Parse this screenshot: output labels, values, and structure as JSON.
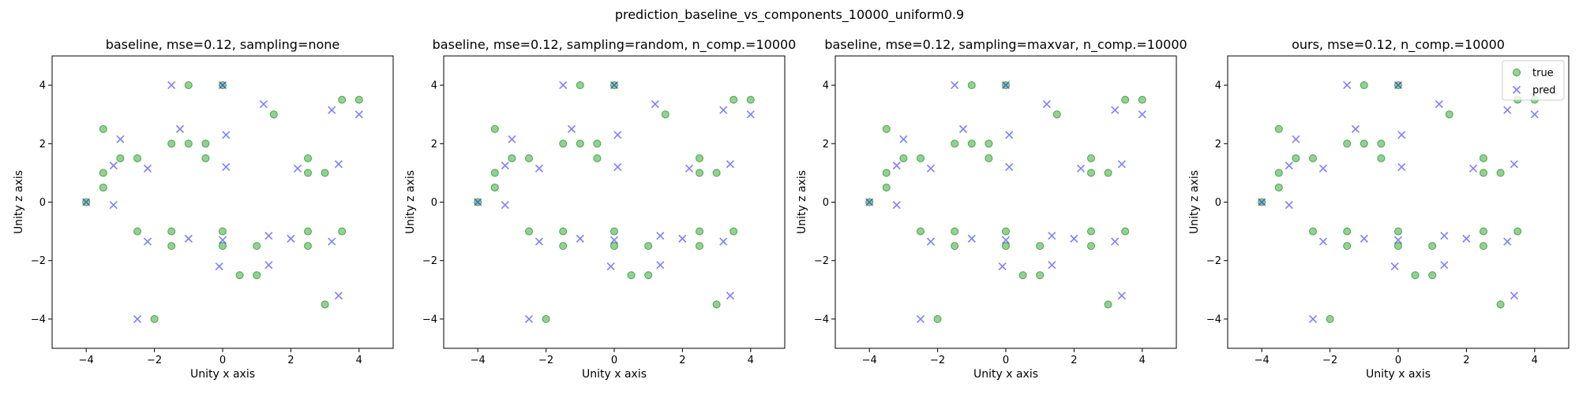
{
  "figure": {
    "suptitle": "prediction_baseline_vs_components_10000_uniform0.9"
  },
  "colors": {
    "true": "#2ca02c",
    "pred": "#0000ff"
  },
  "chart_data": [
    {
      "type": "scatter",
      "title": "baseline, mse=0.12, sampling=none",
      "xlabel": "Unity x axis",
      "ylabel": "Unity z axis",
      "xlim": [
        -5,
        5
      ],
      "ylim": [
        -5,
        5
      ],
      "xticks": [
        -4,
        -2,
        0,
        2,
        4
      ],
      "yticks": [
        -4,
        -2,
        0,
        2,
        4
      ],
      "grid": false,
      "series": [
        {
          "key": "true",
          "marker": "circle",
          "points": [
            [
              -4,
              0
            ],
            [
              -3.5,
              0.5
            ],
            [
              -3.5,
              1
            ],
            [
              -3.5,
              2.5
            ],
            [
              -3,
              1.5
            ],
            [
              -2.5,
              1.5
            ],
            [
              -1.5,
              2
            ],
            [
              -1,
              2
            ],
            [
              -0.5,
              2
            ],
            [
              -0.5,
              1.5
            ],
            [
              -1,
              4
            ],
            [
              0,
              4
            ],
            [
              1.5,
              3
            ],
            [
              2.5,
              1
            ],
            [
              2.5,
              1.5
            ],
            [
              3.5,
              3.5
            ],
            [
              4,
              3.5
            ],
            [
              3,
              1
            ],
            [
              -2.5,
              -1
            ],
            [
              -1.5,
              -1
            ],
            [
              -1.5,
              -1.5
            ],
            [
              0,
              -1
            ],
            [
              0,
              -1.5
            ],
            [
              0.5,
              -2.5
            ],
            [
              1,
              -2.5
            ],
            [
              1,
              -1.5
            ],
            [
              2.5,
              -1
            ],
            [
              2.5,
              -1.5
            ],
            [
              3.5,
              -1
            ],
            [
              3,
              -3.5
            ],
            [
              -2,
              -4
            ]
          ]
        },
        {
          "key": "pred",
          "marker": "x",
          "points": [
            [
              -4,
              0
            ],
            [
              -3.2,
              1.25
            ],
            [
              -3.2,
              -0.1
            ],
            [
              -3,
              2.15
            ],
            [
              -2.2,
              1.15
            ],
            [
              -2.2,
              -1.35
            ],
            [
              -1.5,
              4
            ],
            [
              -1.25,
              2.5
            ],
            [
              -1,
              -1.25
            ],
            [
              0,
              4
            ],
            [
              0.1,
              2.3
            ],
            [
              0.1,
              1.2
            ],
            [
              0,
              -1.3
            ],
            [
              -0.1,
              -2.2
            ],
            [
              1.2,
              3.35
            ],
            [
              1.35,
              -1.15
            ],
            [
              1.35,
              -2.15
            ],
            [
              2,
              -1.25
            ],
            [
              2.2,
              1.15
            ],
            [
              3.2,
              3.15
            ],
            [
              3.2,
              -1.35
            ],
            [
              3.4,
              1.3
            ],
            [
              3.4,
              -3.2
            ],
            [
              4,
              3
            ],
            [
              -2.5,
              -4
            ]
          ]
        }
      ]
    },
    {
      "type": "scatter",
      "title": "baseline, mse=0.12, sampling=random, n_comp.=10000",
      "xlabel": "Unity x axis",
      "ylabel": "Unity z axis",
      "xlim": [
        -5,
        5
      ],
      "ylim": [
        -5,
        5
      ],
      "xticks": [
        -4,
        -2,
        0,
        2,
        4
      ],
      "yticks": [
        -4,
        -2,
        0,
        2,
        4
      ],
      "grid": false,
      "series": [
        {
          "key": "true",
          "marker": "circle",
          "points": [
            [
              -4,
              0
            ],
            [
              -3.5,
              0.5
            ],
            [
              -3.5,
              1
            ],
            [
              -3.5,
              2.5
            ],
            [
              -3,
              1.5
            ],
            [
              -2.5,
              1.5
            ],
            [
              -1.5,
              2
            ],
            [
              -1,
              2
            ],
            [
              -0.5,
              2
            ],
            [
              -0.5,
              1.5
            ],
            [
              -1,
              4
            ],
            [
              0,
              4
            ],
            [
              1.5,
              3
            ],
            [
              2.5,
              1
            ],
            [
              2.5,
              1.5
            ],
            [
              3.5,
              3.5
            ],
            [
              4,
              3.5
            ],
            [
              3,
              1
            ],
            [
              -2.5,
              -1
            ],
            [
              -1.5,
              -1
            ],
            [
              -1.5,
              -1.5
            ],
            [
              0,
              -1
            ],
            [
              0,
              -1.5
            ],
            [
              0.5,
              -2.5
            ],
            [
              1,
              -2.5
            ],
            [
              1,
              -1.5
            ],
            [
              2.5,
              -1
            ],
            [
              2.5,
              -1.5
            ],
            [
              3.5,
              -1
            ],
            [
              3,
              -3.5
            ],
            [
              -2,
              -4
            ]
          ]
        },
        {
          "key": "pred",
          "marker": "x",
          "points": [
            [
              -4,
              0
            ],
            [
              -3.2,
              1.25
            ],
            [
              -3.2,
              -0.1
            ],
            [
              -3,
              2.15
            ],
            [
              -2.2,
              1.15
            ],
            [
              -2.2,
              -1.35
            ],
            [
              -1.5,
              4
            ],
            [
              -1.25,
              2.5
            ],
            [
              -1,
              -1.25
            ],
            [
              0,
              4
            ],
            [
              0.1,
              2.3
            ],
            [
              0.1,
              1.2
            ],
            [
              0,
              -1.3
            ],
            [
              -0.1,
              -2.2
            ],
            [
              1.2,
              3.35
            ],
            [
              1.35,
              -1.15
            ],
            [
              1.35,
              -2.15
            ],
            [
              2,
              -1.25
            ],
            [
              2.2,
              1.15
            ],
            [
              3.2,
              3.15
            ],
            [
              3.2,
              -1.35
            ],
            [
              3.4,
              1.3
            ],
            [
              3.4,
              -3.2
            ],
            [
              4,
              3
            ],
            [
              -2.5,
              -4
            ]
          ]
        }
      ]
    },
    {
      "type": "scatter",
      "title": "baseline, mse=0.12, sampling=maxvar, n_comp.=10000",
      "xlabel": "Unity x axis",
      "ylabel": "Unity z axis",
      "xlim": [
        -5,
        5
      ],
      "ylim": [
        -5,
        5
      ],
      "xticks": [
        -4,
        -2,
        0,
        2,
        4
      ],
      "yticks": [
        -4,
        -2,
        0,
        2,
        4
      ],
      "grid": false,
      "series": [
        {
          "key": "true",
          "marker": "circle",
          "points": [
            [
              -4,
              0
            ],
            [
              -3.5,
              0.5
            ],
            [
              -3.5,
              1
            ],
            [
              -3.5,
              2.5
            ],
            [
              -3,
              1.5
            ],
            [
              -2.5,
              1.5
            ],
            [
              -1.5,
              2
            ],
            [
              -1,
              2
            ],
            [
              -0.5,
              2
            ],
            [
              -0.5,
              1.5
            ],
            [
              -1,
              4
            ],
            [
              0,
              4
            ],
            [
              1.5,
              3
            ],
            [
              2.5,
              1
            ],
            [
              2.5,
              1.5
            ],
            [
              3.5,
              3.5
            ],
            [
              4,
              3.5
            ],
            [
              3,
              1
            ],
            [
              -2.5,
              -1
            ],
            [
              -1.5,
              -1
            ],
            [
              -1.5,
              -1.5
            ],
            [
              0,
              -1
            ],
            [
              0,
              -1.5
            ],
            [
              0.5,
              -2.5
            ],
            [
              1,
              -2.5
            ],
            [
              1,
              -1.5
            ],
            [
              2.5,
              -1
            ],
            [
              2.5,
              -1.5
            ],
            [
              3.5,
              -1
            ],
            [
              3,
              -3.5
            ],
            [
              -2,
              -4
            ]
          ]
        },
        {
          "key": "pred",
          "marker": "x",
          "points": [
            [
              -4,
              0
            ],
            [
              -3.2,
              1.25
            ],
            [
              -3.2,
              -0.1
            ],
            [
              -3,
              2.15
            ],
            [
              -2.2,
              1.15
            ],
            [
              -2.2,
              -1.35
            ],
            [
              -1.5,
              4
            ],
            [
              -1.25,
              2.5
            ],
            [
              -1,
              -1.25
            ],
            [
              0,
              4
            ],
            [
              0.1,
              2.3
            ],
            [
              0.1,
              1.2
            ],
            [
              0,
              -1.3
            ],
            [
              -0.1,
              -2.2
            ],
            [
              1.2,
              3.35
            ],
            [
              1.35,
              -1.15
            ],
            [
              1.35,
              -2.15
            ],
            [
              2,
              -1.25
            ],
            [
              2.2,
              1.15
            ],
            [
              3.2,
              3.15
            ],
            [
              3.2,
              -1.35
            ],
            [
              3.4,
              1.3
            ],
            [
              3.4,
              -3.2
            ],
            [
              4,
              3
            ],
            [
              -2.5,
              -4
            ]
          ]
        }
      ]
    },
    {
      "type": "scatter",
      "title": "ours, mse=0.12, n_comp.=10000",
      "xlabel": "Unity x axis",
      "ylabel": "Unity z axis",
      "xlim": [
        -5,
        5
      ],
      "ylim": [
        -5,
        5
      ],
      "xticks": [
        -4,
        -2,
        0,
        2,
        4
      ],
      "yticks": [
        -4,
        -2,
        0,
        2,
        4
      ],
      "grid": false,
      "legend": {
        "location": "top-right",
        "entries": [
          {
            "key": "true",
            "label": "true"
          },
          {
            "key": "pred",
            "label": "pred"
          }
        ]
      },
      "series": [
        {
          "key": "true",
          "name": "true",
          "marker": "circle",
          "points": [
            [
              -4,
              0
            ],
            [
              -3.5,
              0.5
            ],
            [
              -3.5,
              1
            ],
            [
              -3.5,
              2.5
            ],
            [
              -3,
              1.5
            ],
            [
              -2.5,
              1.5
            ],
            [
              -1.5,
              2
            ],
            [
              -1,
              2
            ],
            [
              -0.5,
              2
            ],
            [
              -0.5,
              1.5
            ],
            [
              -1,
              4
            ],
            [
              0,
              4
            ],
            [
              1.5,
              3
            ],
            [
              2.5,
              1
            ],
            [
              2.5,
              1.5
            ],
            [
              3.5,
              3.5
            ],
            [
              4,
              3.5
            ],
            [
              3,
              1
            ],
            [
              -2.5,
              -1
            ],
            [
              -1.5,
              -1
            ],
            [
              -1.5,
              -1.5
            ],
            [
              0,
              -1
            ],
            [
              0,
              -1.5
            ],
            [
              0.5,
              -2.5
            ],
            [
              1,
              -2.5
            ],
            [
              1,
              -1.5
            ],
            [
              2.5,
              -1
            ],
            [
              2.5,
              -1.5
            ],
            [
              3.5,
              -1
            ],
            [
              3,
              -3.5
            ],
            [
              -2,
              -4
            ]
          ]
        },
        {
          "key": "pred",
          "name": "pred",
          "marker": "x",
          "points": [
            [
              -4,
              0
            ],
            [
              -3.2,
              1.25
            ],
            [
              -3.2,
              -0.1
            ],
            [
              -3,
              2.15
            ],
            [
              -2.2,
              1.15
            ],
            [
              -2.2,
              -1.35
            ],
            [
              -1.5,
              4
            ],
            [
              -1.25,
              2.5
            ],
            [
              -1,
              -1.25
            ],
            [
              0,
              4
            ],
            [
              0.1,
              2.3
            ],
            [
              0.1,
              1.2
            ],
            [
              0,
              -1.3
            ],
            [
              -0.1,
              -2.2
            ],
            [
              1.2,
              3.35
            ],
            [
              1.35,
              -1.15
            ],
            [
              1.35,
              -2.15
            ],
            [
              2,
              -1.25
            ],
            [
              2.2,
              1.15
            ],
            [
              3.2,
              3.15
            ],
            [
              3.2,
              -1.35
            ],
            [
              3.4,
              1.3
            ],
            [
              3.4,
              -3.2
            ],
            [
              4,
              3
            ],
            [
              -2.5,
              -4
            ]
          ]
        }
      ]
    }
  ]
}
